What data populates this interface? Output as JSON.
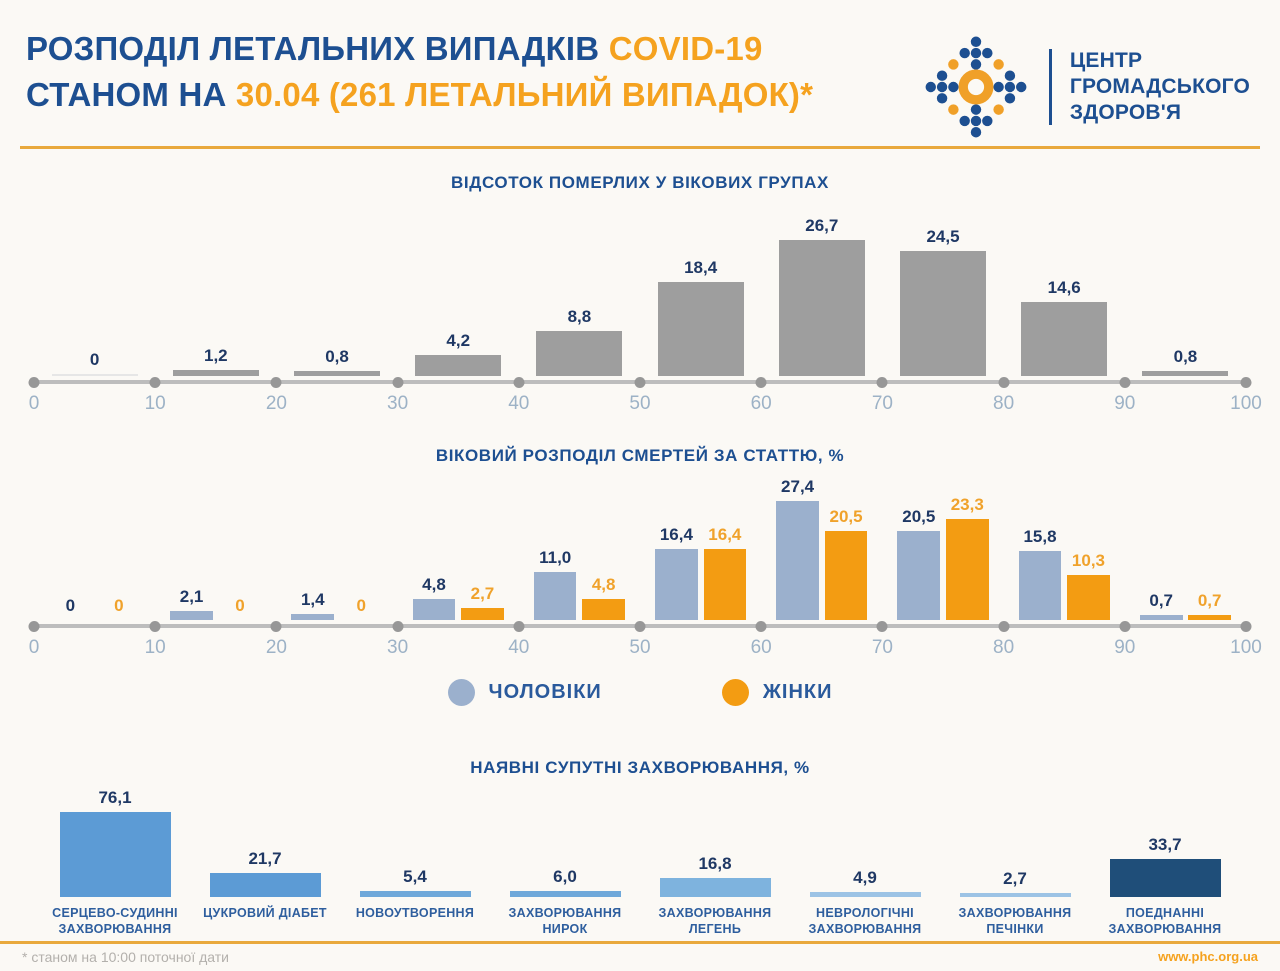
{
  "header": {
    "title_line1_blue": "РОЗПОДІЛ ЛЕТАЛЬНИХ ВИПАДКІВ",
    "title_line1_orange": "COVID-19",
    "title_line2_blue": "СТАНОМ НА",
    "title_line2_orange": "30.04 (261 ЛЕТАЛЬНИЙ ВИПАДОК)*",
    "logo_text": "ЦЕНТР\nГРОМАДСЬКОГО\nЗДОРОВ'Я"
  },
  "colors": {
    "brand_blue": "#1D4F91",
    "brand_orange": "#F5A21F",
    "value_navy": "#1F3864",
    "bar_gray": "#9E9E9E",
    "male_blue": "#9BB0CD",
    "female_orange": "#F39C12",
    "divider_orange": "#E9A93D"
  },
  "chart_data": [
    {
      "type": "bar",
      "title": "ВІДСОТОК ПОМЕРЛИХ У ВІКОВИХ ГРУПАХ",
      "categories": [
        "0-10",
        "10-20",
        "20-30",
        "30-40",
        "40-50",
        "50-60",
        "60-70",
        "70-80",
        "80-90",
        "90-100"
      ],
      "axis_ticks": [
        "0",
        "10",
        "20",
        "30",
        "40",
        "50",
        "60",
        "70",
        "80",
        "90",
        "100"
      ],
      "values": [
        0,
        1.2,
        0.8,
        4.2,
        8.8,
        18.4,
        26.7,
        24.5,
        14.6,
        0.8
      ],
      "labels": [
        "0",
        "1,2",
        "0,8",
        "4,2",
        "8,8",
        "18,4",
        "26,7",
        "24,5",
        "14,6",
        "0,8"
      ],
      "bar_color": "#9E9E9E",
      "xlabel": "",
      "ylabel": "",
      "ylim": [
        0,
        30
      ],
      "grid": false,
      "legend_position": "none"
    },
    {
      "type": "bar",
      "title": "ВІКОВИЙ РОЗПОДІЛ СМЕРТЕЙ ЗА СТАТТЮ, %",
      "categories": [
        "0-10",
        "10-20",
        "20-30",
        "30-40",
        "40-50",
        "50-60",
        "60-70",
        "70-80",
        "80-90",
        "90-100"
      ],
      "axis_ticks": [
        "0",
        "10",
        "20",
        "30",
        "40",
        "50",
        "60",
        "70",
        "80",
        "90",
        "100"
      ],
      "series": [
        {
          "name": "ЧОЛОВІКИ",
          "color": "#9BB0CD",
          "label_color": "#1F3864",
          "values": [
            0,
            2.1,
            1.4,
            4.8,
            11.0,
            16.4,
            27.4,
            20.5,
            15.8,
            0.7
          ],
          "labels": [
            "0",
            "2,1",
            "1,4",
            "4,8",
            "11,0",
            "16,4",
            "27,4",
            "20,5",
            "15,8",
            "0,7"
          ]
        },
        {
          "name": "ЖІНКИ",
          "color": "#F39C12",
          "label_color": "#F0A22B",
          "values": [
            0,
            0,
            0,
            2.7,
            4.8,
            16.4,
            20.5,
            23.3,
            10.3,
            0.7
          ],
          "labels": [
            "0",
            "0",
            "0",
            "2,7",
            "4,8",
            "16,4",
            "20,5",
            "23,3",
            "10,3",
            "0,7"
          ]
        }
      ],
      "xlabel": "",
      "ylabel": "",
      "ylim": [
        0,
        30
      ],
      "grid": false,
      "legend_position": "bottom-center"
    },
    {
      "type": "bar",
      "title": "НАЯВНІ СУПУТНІ ЗАХВОРЮВАННЯ, %",
      "items": [
        {
          "label": "СЕРЦЕВО-СУДИННІ\nЗАХВОРЮВАННЯ",
          "value": 76.1,
          "display": "76,1",
          "color": "#5C9BD5"
        },
        {
          "label": "ЦУКРОВИЙ ДІАБЕТ",
          "value": 21.7,
          "display": "21,7",
          "color": "#5C9BD5"
        },
        {
          "label": "НОВОУТВОРЕННЯ",
          "value": 5.4,
          "display": "5,4",
          "color": "#6FA8DA"
        },
        {
          "label": "ЗАХВОРЮВАННЯ\nНИРОК",
          "value": 6.0,
          "display": "6,0",
          "color": "#6FA8DA"
        },
        {
          "label": "ЗАХВОРЮВАННЯ\nЛЕГЕНЬ",
          "value": 16.8,
          "display": "16,8",
          "color": "#7EB3DE"
        },
        {
          "label": "НЕВРОЛОГІЧНІ\nЗАХВОРЮВАННЯ",
          "value": 4.9,
          "display": "4,9",
          "color": "#9CC3E5"
        },
        {
          "label": "ЗАХВОРЮВАННЯ\nПЕЧІНКИ",
          "value": 2.7,
          "display": "2,7",
          "color": "#9CC3E5"
        },
        {
          "label": "ПОЕДНАННІ\nЗАХВОРЮВАННЯ",
          "value": 33.7,
          "display": "33,7",
          "color": "#1F4E79"
        }
      ],
      "xlabel": "",
      "ylabel": "",
      "ylim": [
        0,
        80
      ],
      "grid": false,
      "legend_position": "none"
    }
  ],
  "footer": {
    "note": "* станом на 10:00 поточної дати",
    "url": "www.phc.org.ua"
  }
}
